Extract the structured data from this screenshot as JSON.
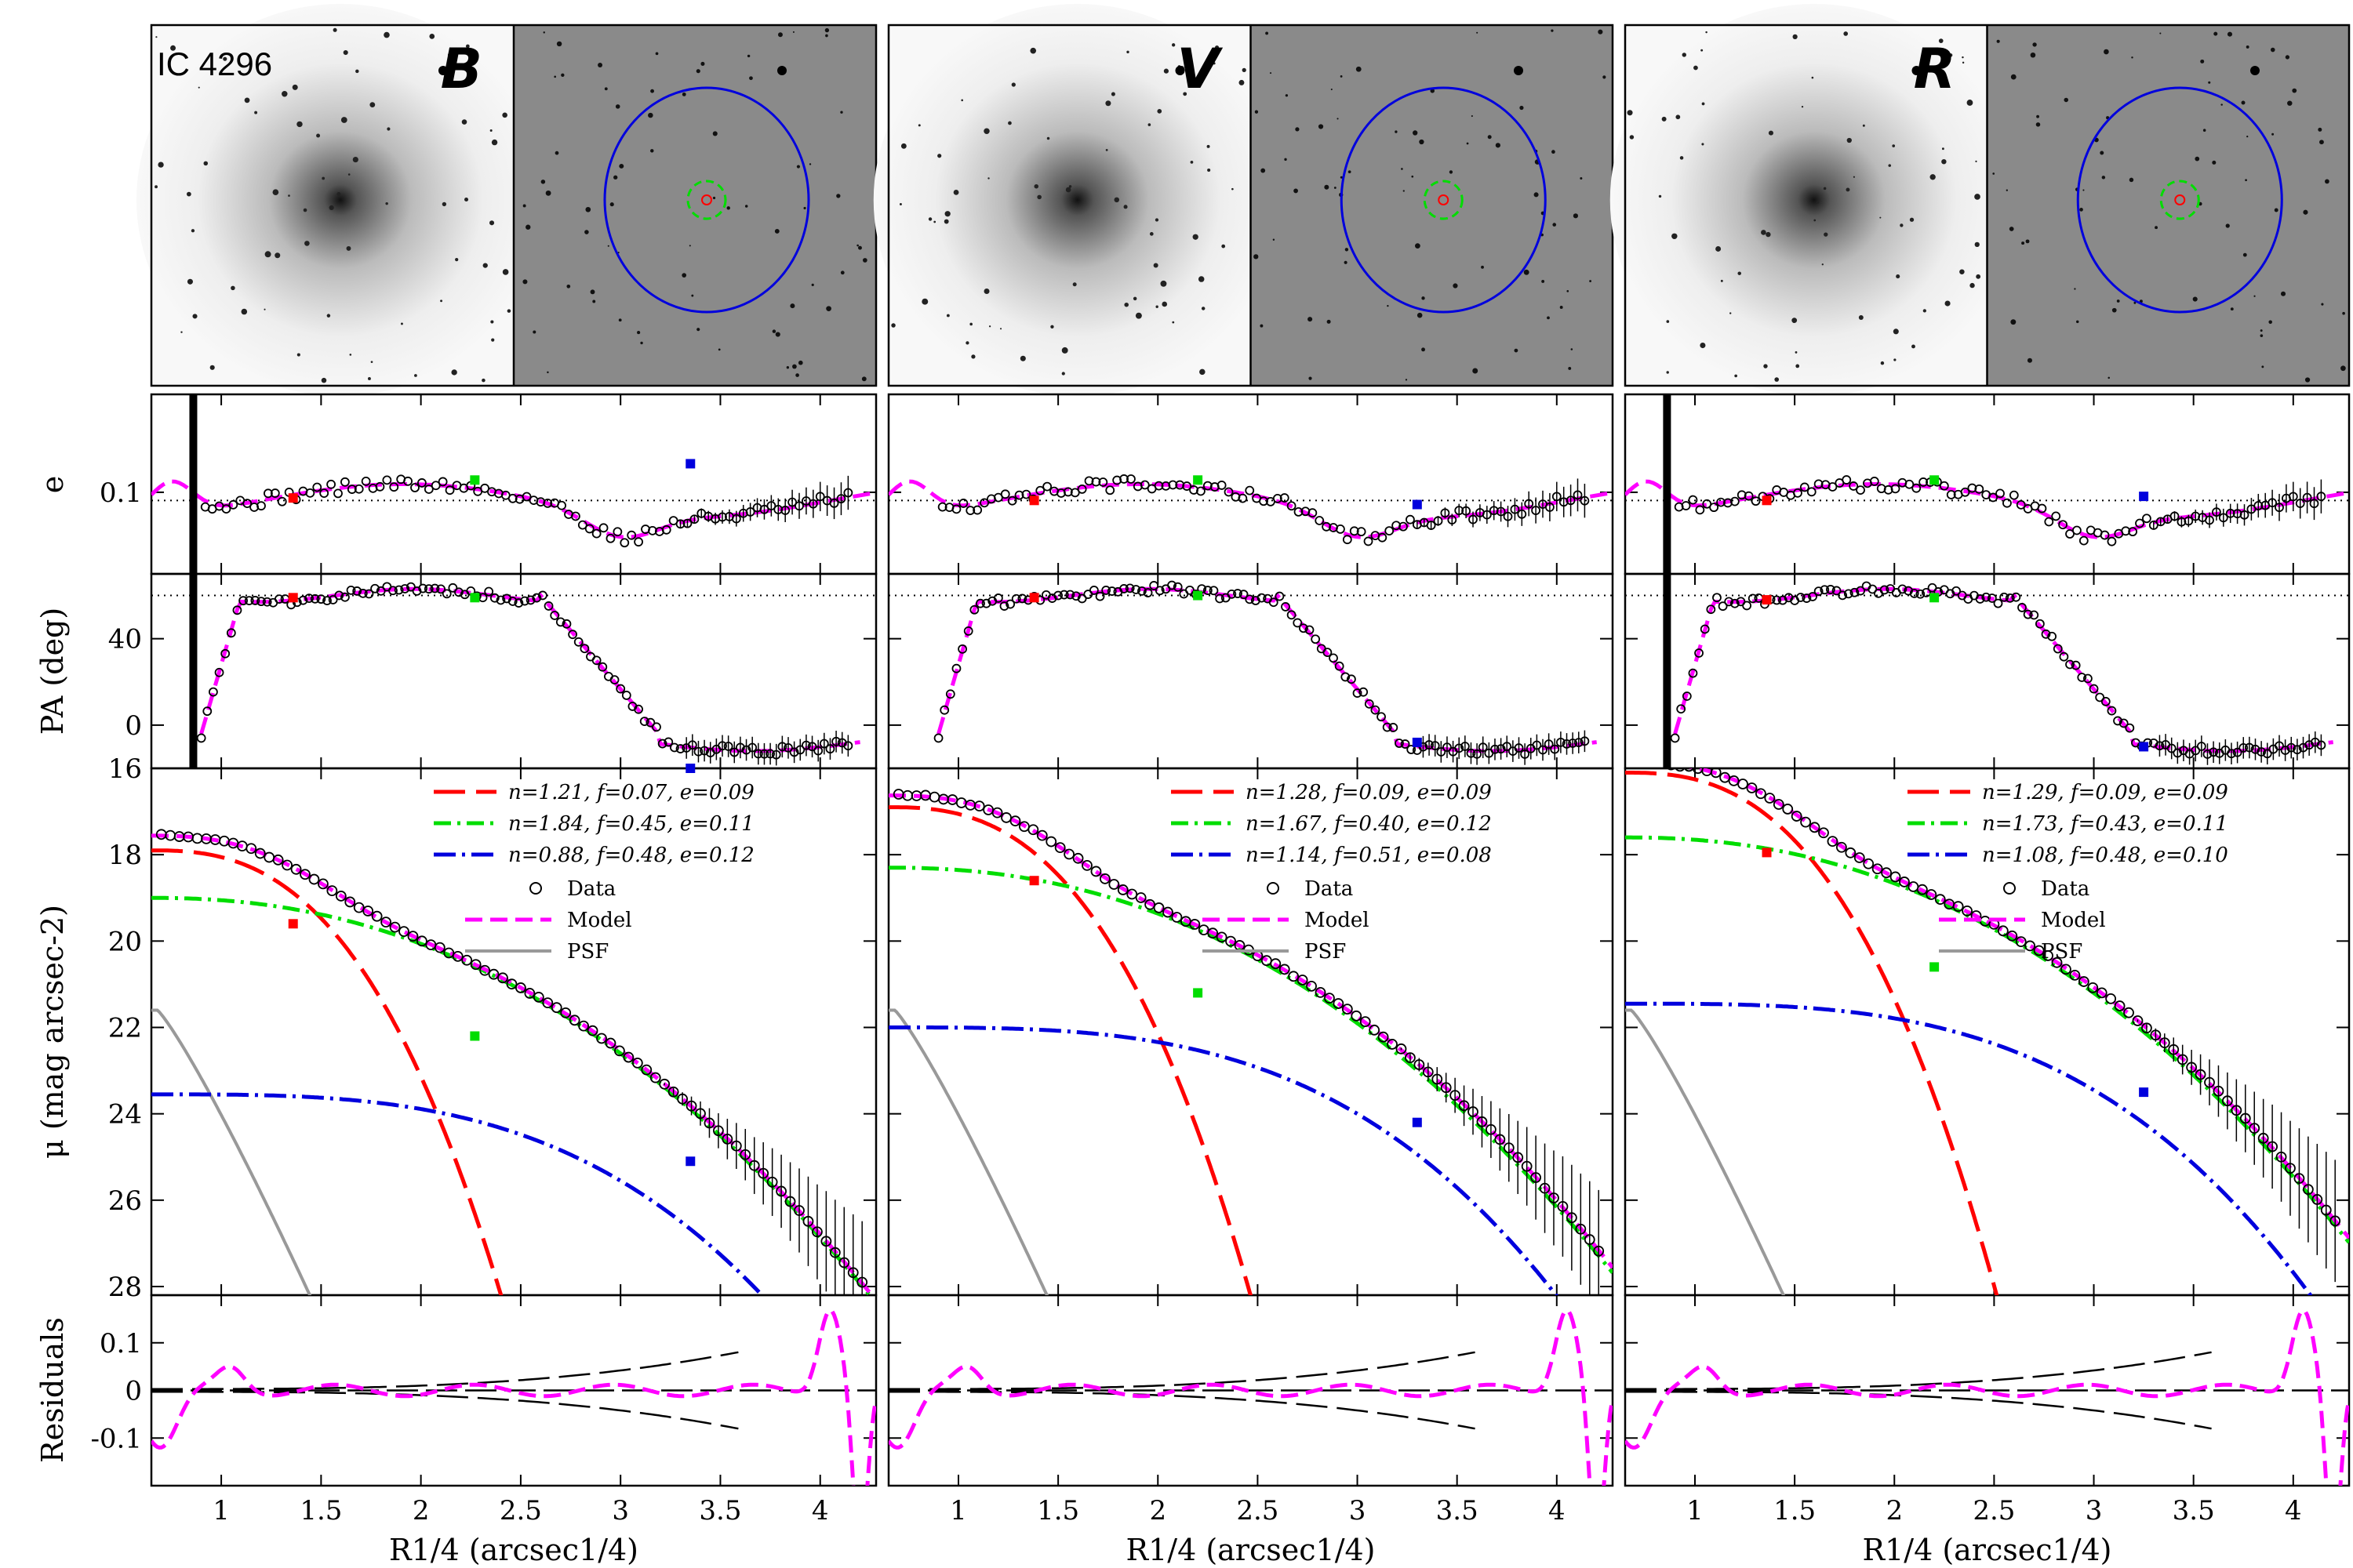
{
  "galaxy": "IC 4296",
  "colors": {
    "bulge": "#ff0000",
    "disk": "#00dd00",
    "halo": "#0000dd",
    "model": "#ff00ff",
    "psf": "#999999",
    "data": "#000000"
  },
  "chart_data": {
    "type": "scatter",
    "title": "IC 4296",
    "x": {
      "label": "R1/4 (arcsec1/4)",
      "lim": [
        0.65,
        4.28
      ],
      "ticks": [
        1,
        1.5,
        2,
        2.5,
        3,
        3.5,
        4
      ],
      "tick_labels": [
        "1",
        "1.5",
        "2",
        "2.5",
        "3",
        "3.5",
        "4"
      ]
    },
    "rows": {
      "e": {
        "ylabel": "e",
        "lim": [
          0.0,
          0.22
        ],
        "ticks": [
          0.1
        ],
        "tick_labels": [
          "0.1"
        ],
        "ref_line": 0.09
      },
      "pa": {
        "ylabel": "PA (deg)",
        "lim": [
          -20,
          70
        ],
        "ticks": [
          0,
          40
        ],
        "tick_labels": [
          "0",
          "40"
        ],
        "ref_line": 60
      },
      "mu": {
        "ylabel": "μ (mag arcsec-2)",
        "lim": [
          16,
          28.2
        ],
        "inverted": true,
        "ticks": [
          16,
          18,
          20,
          22,
          24,
          26,
          28
        ],
        "tick_labels": [
          "16",
          "18",
          "20",
          "22",
          "24",
          "26",
          "28"
        ]
      },
      "res": {
        "ylabel": "Residuals",
        "lim": [
          -0.2,
          0.2
        ],
        "ticks": [
          0.1,
          0,
          -0.1
        ],
        "tick_labels": [
          "0.1",
          "0",
          "-0.1"
        ]
      }
    },
    "legend_labels": {
      "data": "Data",
      "model": "Model",
      "psf": "PSF"
    },
    "panels": [
      {
        "band": "B",
        "components": [
          {
            "name": "bulge",
            "n": 1.21,
            "f": 0.07,
            "e": 0.09,
            "label": "n=1.21,  f=0.07,  e=0.09",
            "mu0": 17.9
          },
          {
            "name": "disk",
            "n": 1.84,
            "f": 0.45,
            "e": 0.11,
            "label": "n=1.84,  f=0.45,  e=0.11",
            "mu0": 19.0
          },
          {
            "name": "halo",
            "n": 0.88,
            "f": 0.48,
            "e": 0.12,
            "label": "n=0.88,  f=0.48,  e=0.12",
            "mu0": 23.55
          }
        ],
        "data_mu0": 17.65,
        "markers": {
          "e": [
            0.093,
            0.115,
            0.135
          ],
          "pa": [
            59,
            59,
            -20
          ],
          "mu": [
            19.6,
            22.2,
            25.1
          ]
        },
        "markers_x": [
          1.36,
          2.27,
          3.35
        ],
        "halo_end": 4.25
      },
      {
        "band": "V",
        "components": [
          {
            "name": "bulge",
            "n": 1.28,
            "f": 0.09,
            "e": 0.09,
            "label": "n=1.28,  f=0.09,  e=0.09",
            "mu0": 16.9
          },
          {
            "name": "disk",
            "n": 1.67,
            "f": 0.4,
            "e": 0.12,
            "label": "n=1.67,  f=0.40,  e=0.12",
            "mu0": 18.3
          },
          {
            "name": "halo",
            "n": 1.14,
            "f": 0.51,
            "e": 0.08,
            "label": "n=1.14,  f=0.51,  e=0.08",
            "mu0": 22.0
          }
        ],
        "data_mu0": 16.7,
        "markers": {
          "e": [
            0.09,
            0.115,
            0.085
          ],
          "pa": [
            59,
            60,
            -8
          ],
          "mu": [
            18.6,
            21.2,
            24.2
          ]
        },
        "markers_x": [
          1.38,
          2.2,
          3.3
        ],
        "halo_end": 4.28
      },
      {
        "band": "R",
        "components": [
          {
            "name": "bulge",
            "n": 1.29,
            "f": 0.09,
            "e": 0.09,
            "label": "n=1.29,  f=0.09,  e=0.09",
            "mu0": 16.1
          },
          {
            "name": "disk",
            "n": 1.73,
            "f": 0.43,
            "e": 0.11,
            "label": "n=1.73,  f=0.43,  e=0.11",
            "mu0": 17.6
          },
          {
            "name": "halo",
            "n": 1.08,
            "f": 0.48,
            "e": 0.1,
            "label": "n=1.08,  f=0.48,  e=0.10",
            "mu0": 21.45
          }
        ],
        "data_mu0": 15.9,
        "markers": {
          "e": [
            0.09,
            0.115,
            0.095
          ],
          "pa": [
            58,
            59,
            -10
          ],
          "mu": [
            17.95,
            20.6,
            23.5
          ]
        },
        "markers_x": [
          1.36,
          2.2,
          3.25
        ],
        "halo_end": 4.28
      }
    ]
  }
}
